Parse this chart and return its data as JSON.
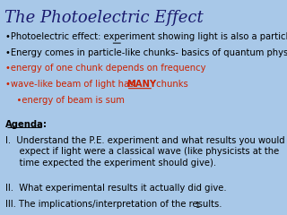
{
  "title": "The Photoelectric Effect",
  "background_color": "#a8c8e8",
  "title_color": "#1a1a6e",
  "title_fontsize": 13,
  "body_fontsize": 7.2,
  "black_lines": [
    "•Photoelectric effect: experiment showing light is also a particle.",
    "•Energy comes in particle-like chunks- basics of quantum physics."
  ],
  "red_lines": [
    "•energy of one chunk depends on frequency",
    "•wave-like beam of light has MANY chunks",
    "    •energy of beam is sum"
  ],
  "agenda_header": "Agenda:",
  "agenda_items": [
    "I.  Understand the P.E. experiment and what results you would\n     expect if light were a classical wave (like physicists at the\n     time expected the experiment should give).",
    "II.  What experimental results it actually did give.",
    "III. The implications/interpretation of the results."
  ],
  "page_number": "1",
  "red_color": "#cc2200"
}
